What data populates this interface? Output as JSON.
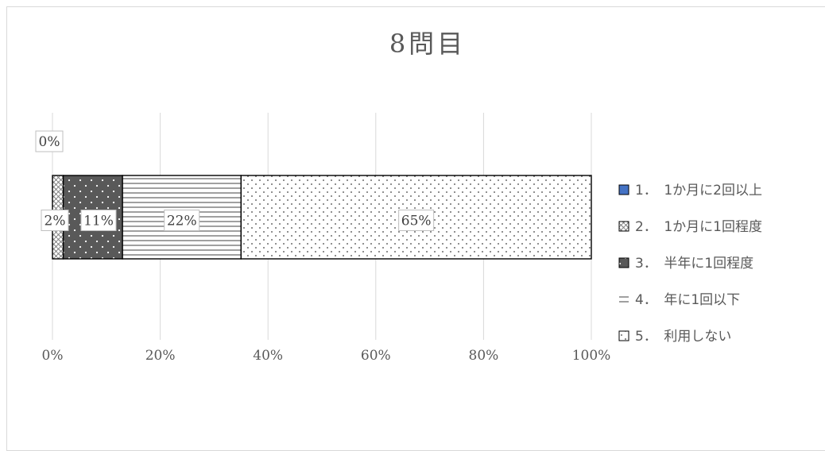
{
  "chart_data": {
    "type": "bar",
    "orientation": "horizontal",
    "stacked": "percent",
    "title": "8問目",
    "xlabel": "",
    "ylabel": "",
    "xlim": [
      0,
      100
    ],
    "x_tick_labels": [
      "0%",
      "20%",
      "40%",
      "60%",
      "80%",
      "100%"
    ],
    "grid": true,
    "legend_position": "right",
    "series": [
      {
        "name": "1．　1か月に2回以上",
        "value": 0,
        "label": "0%",
        "pattern": "solid",
        "color": "#4472c4"
      },
      {
        "name": "2．　1か月に1回程度",
        "value": 2,
        "label": "2%",
        "pattern": "checker",
        "color": "#a6a6a6"
      },
      {
        "name": "3．　半年に1回程度",
        "value": 11,
        "label": "11%",
        "pattern": "dark-dots",
        "color": "#595959"
      },
      {
        "name": "4．　年に1回以下",
        "value": 22,
        "label": "22%",
        "pattern": "horizontal-lines",
        "color": "#ffffff"
      },
      {
        "name": "5．　利用しない",
        "value": 65,
        "label": "65%",
        "pattern": "dots",
        "color": "#ffffff"
      }
    ]
  }
}
